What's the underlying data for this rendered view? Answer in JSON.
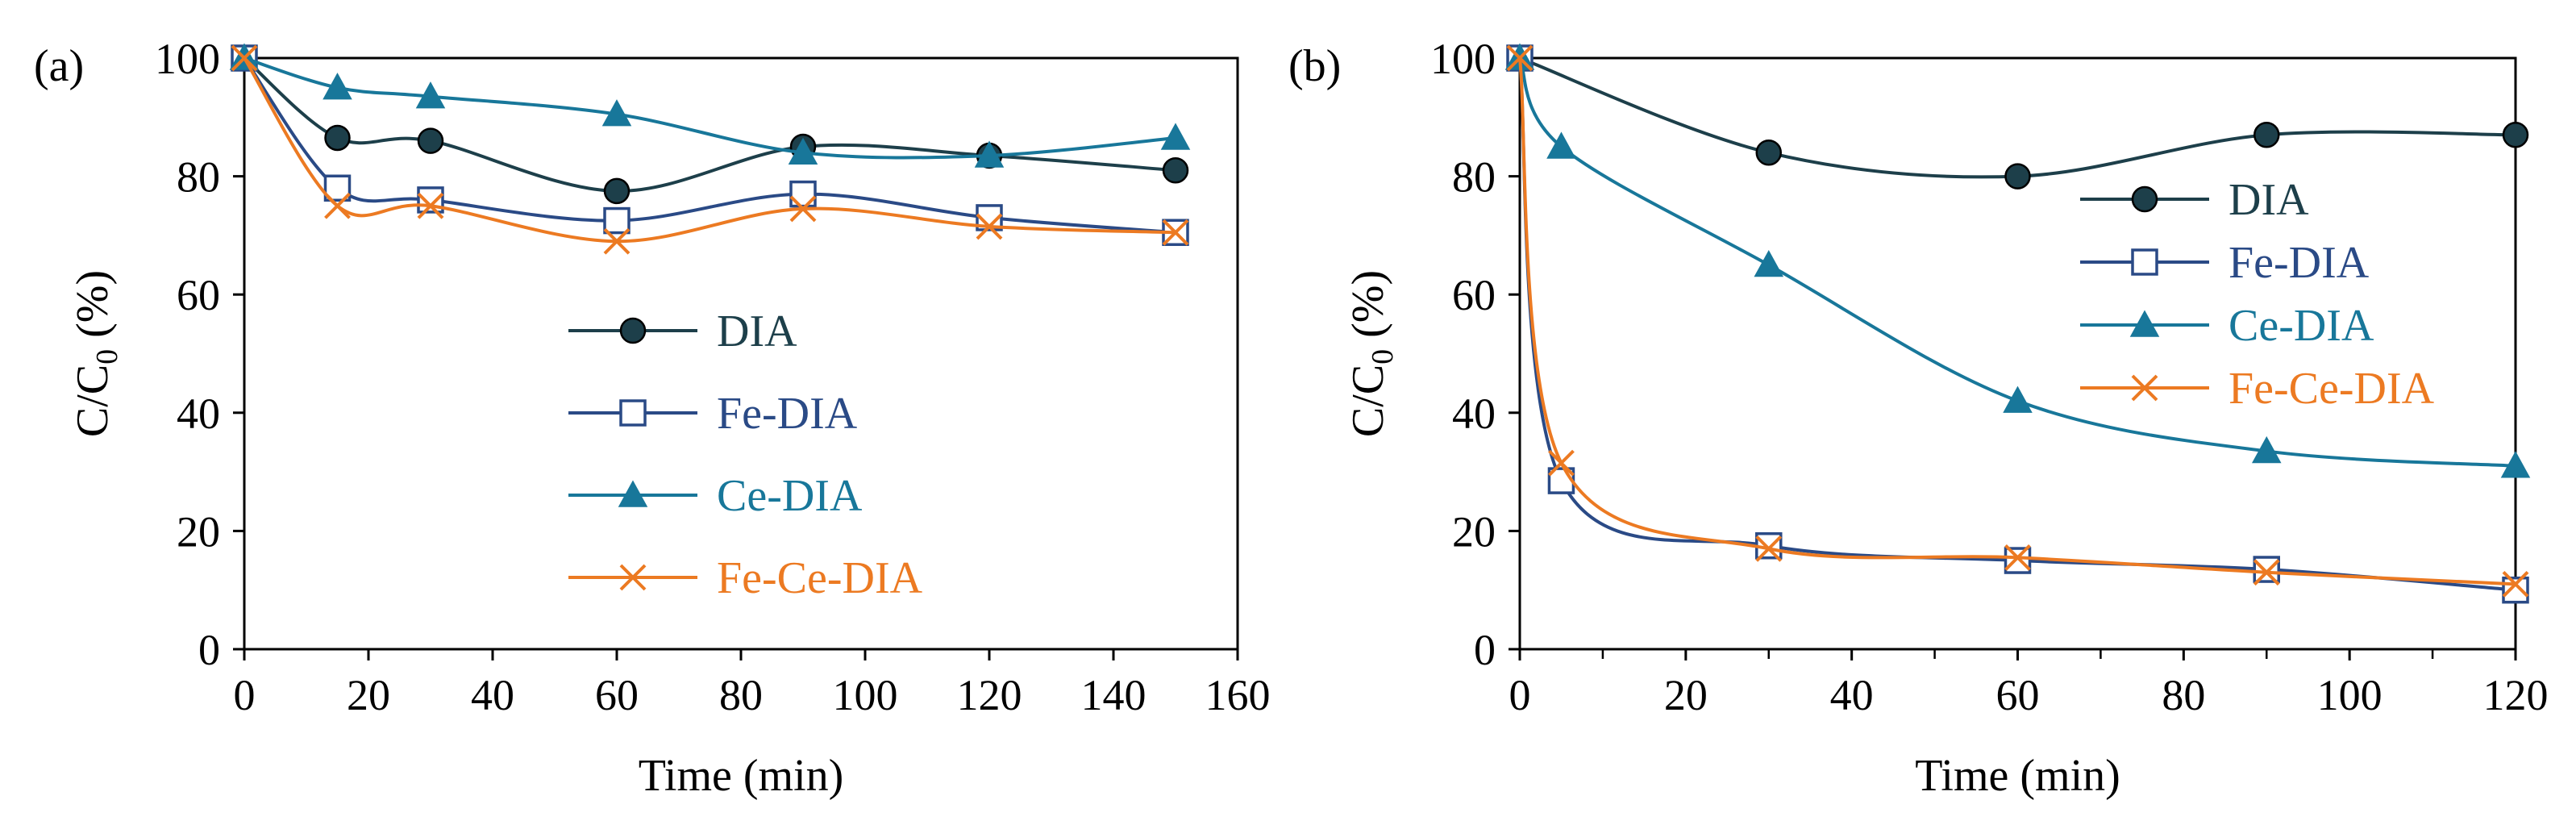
{
  "chart_data": [
    {
      "type": "line",
      "panel_label": "(a)",
      "xlabel": "Time (min)",
      "ylabel_main": "C/C",
      "ylabel_sub": "0",
      "ylabel_tail": " (%)",
      "xlim": [
        0,
        160
      ],
      "ylim": [
        0,
        100
      ],
      "xticks": [
        "0",
        "20",
        "40",
        "60",
        "80",
        "100",
        "120",
        "140",
        "160"
      ],
      "yticks": [
        "0",
        "20",
        "40",
        "60",
        "80",
        "100"
      ],
      "grid": false,
      "legend_position": "center-bottom",
      "series": [
        {
          "name": "DIA",
          "color": "#1d3f4a",
          "marker": "circle",
          "x": [
            0,
            15,
            30,
            60,
            90,
            120,
            150
          ],
          "values": [
            100,
            86.5,
            86,
            77.5,
            85,
            83.5,
            81
          ]
        },
        {
          "name": "Fe-DIA",
          "color": "#2a4a86",
          "marker": "square",
          "x": [
            0,
            15,
            30,
            60,
            90,
            120,
            150
          ],
          "values": [
            100,
            78,
            76,
            72.5,
            77,
            73,
            70.5
          ]
        },
        {
          "name": "Ce-DIA",
          "color": "#18779a",
          "marker": "triangle",
          "x": [
            0,
            15,
            30,
            60,
            90,
            120,
            150
          ],
          "values": [
            100,
            95,
            93.5,
            90.5,
            84,
            83.5,
            86.5
          ]
        },
        {
          "name": "Fe-Ce-DIA",
          "color": "#ec7a22",
          "marker": "x",
          "x": [
            0,
            15,
            30,
            60,
            90,
            120,
            150
          ],
          "values": [
            100,
            75,
            75,
            69,
            74.5,
            71.5,
            70.5
          ]
        }
      ]
    },
    {
      "type": "line",
      "panel_label": "(b)",
      "xlabel": "Time (min)",
      "ylabel_main": "C/C",
      "ylabel_sub": "0",
      "ylabel_tail": " (%)",
      "xlim": [
        0,
        120
      ],
      "ylim": [
        0,
        100
      ],
      "xticks": [
        "0",
        "20",
        "40",
        "60",
        "80",
        "100",
        "120"
      ],
      "yticks": [
        "0",
        "20",
        "40",
        "60",
        "80",
        "100"
      ],
      "grid": false,
      "legend_position": "right-middle",
      "series": [
        {
          "name": "DIA",
          "color": "#1d3f4a",
          "marker": "circle",
          "x": [
            0,
            30,
            60,
            90,
            120
          ],
          "values": [
            100,
            84,
            80,
            87,
            87
          ]
        },
        {
          "name": "Fe-DIA",
          "color": "#2a4a86",
          "marker": "square",
          "x": [
            0,
            5,
            30,
            60,
            90,
            120
          ],
          "values": [
            100,
            28.5,
            17.5,
            15,
            13.5,
            10
          ]
        },
        {
          "name": "Ce-DIA",
          "color": "#18779a",
          "marker": "triangle",
          "x": [
            0,
            5,
            30,
            60,
            90,
            120
          ],
          "values": [
            100,
            85,
            65,
            42,
            33.5,
            31
          ]
        },
        {
          "name": "Fe-Ce-DIA",
          "color": "#ec7a22",
          "marker": "x",
          "x": [
            0,
            5,
            30,
            60,
            90,
            120
          ],
          "values": [
            100,
            31.5,
            17,
            15.5,
            13,
            11
          ]
        }
      ]
    }
  ]
}
